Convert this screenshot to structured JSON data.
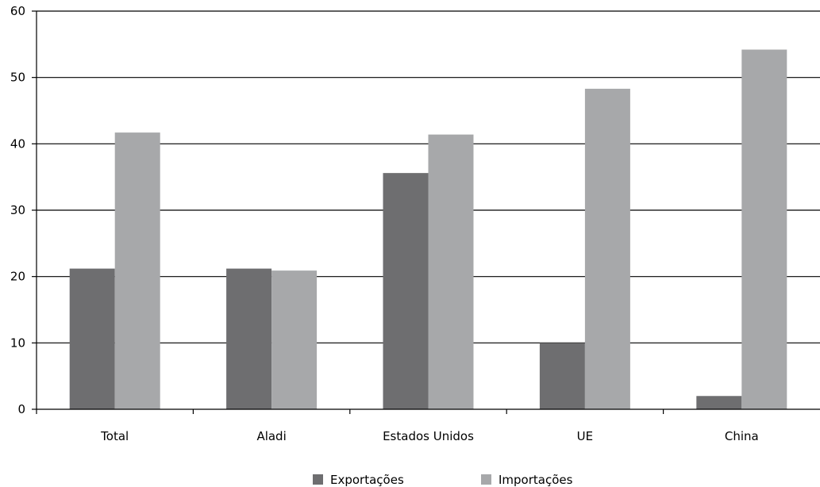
{
  "chart_data": {
    "type": "bar",
    "categories": [
      "Total",
      "Aladi",
      "Estados Unidos",
      "UE",
      "China"
    ],
    "series": [
      {
        "name": "Exportações",
        "values": [
          21.2,
          21.2,
          35.6,
          10.0,
          2.0
        ],
        "color": "#6e6e70"
      },
      {
        "name": "Importações",
        "values": [
          41.7,
          20.9,
          41.4,
          48.3,
          54.2
        ],
        "color": "#a7a8aa"
      }
    ],
    "title": "",
    "xlabel": "",
    "ylabel": "",
    "ylim": [
      0,
      60
    ],
    "yticks": [
      0,
      10,
      20,
      30,
      40,
      50,
      60
    ],
    "grid": true,
    "legend_position": "bottom-center"
  }
}
